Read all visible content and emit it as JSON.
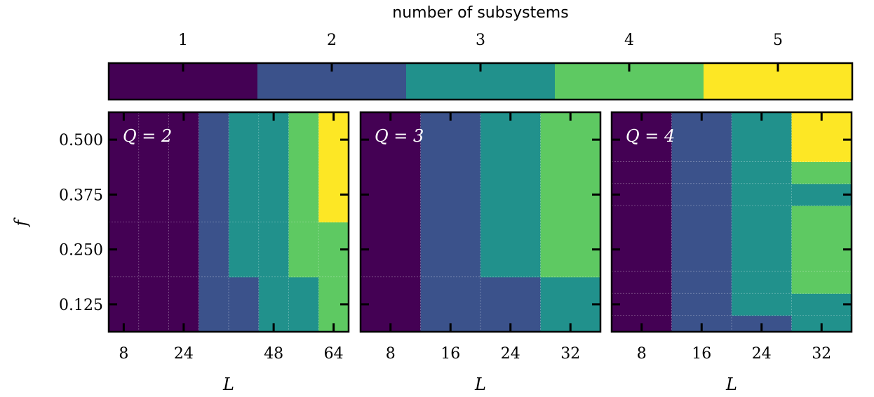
{
  "chart_data": {
    "type": "heatmap",
    "colorbar": {
      "label": "number of subsystems",
      "ticks": [
        "1",
        "2",
        "3",
        "4",
        "5"
      ],
      "values": [
        1,
        2,
        3,
        4,
        5
      ],
      "colors": [
        "#440154",
        "#3b528b",
        "#21918c",
        "#5ec962",
        "#fde725"
      ]
    },
    "y_label": "f",
    "y_ticks": [
      0.125,
      0.25,
      0.375,
      0.5
    ],
    "y_tick_labels": [
      "0.125",
      "0.250",
      "0.375",
      "0.500"
    ],
    "panels": [
      {
        "label": "Q = 2",
        "x_label": "L",
        "x_tick_labels": [
          "8",
          "24",
          "48",
          "64"
        ],
        "x_ticks": [
          8,
          24,
          48,
          64
        ],
        "x_edges": [
          4,
          12,
          20,
          28,
          36,
          44,
          52,
          60,
          68
        ],
        "y_edges": [
          0.0625,
          0.1875,
          0.3125,
          0.5625
        ],
        "cells": [
          [
            1,
            1,
            1,
            2,
            2,
            3,
            3,
            4
          ],
          [
            1,
            1,
            1,
            2,
            3,
            3,
            4,
            4
          ],
          [
            1,
            1,
            1,
            2,
            3,
            3,
            4,
            5
          ]
        ]
      },
      {
        "label": "Q = 3",
        "x_label": "L",
        "x_tick_labels": [
          "8",
          "16",
          "24",
          "32"
        ],
        "x_ticks": [
          8,
          16,
          24,
          32
        ],
        "x_edges": [
          4,
          12,
          20,
          28,
          36
        ],
        "y_edges": [
          0.0625,
          0.1875,
          0.5625
        ],
        "cells": [
          [
            1,
            2,
            2,
            3
          ],
          [
            1,
            2,
            3,
            4
          ]
        ]
      },
      {
        "label": "Q = 4",
        "x_label": "L",
        "x_tick_labels": [
          "8",
          "16",
          "24",
          "32"
        ],
        "x_ticks": [
          8,
          16,
          24,
          32
        ],
        "x_edges": [
          4,
          12,
          20,
          28,
          36
        ],
        "y_edges": [
          0.0625,
          0.1,
          0.15,
          0.2,
          0.35,
          0.4,
          0.45,
          0.5625
        ],
        "cells": [
          [
            1,
            2,
            2,
            3
          ],
          [
            1,
            2,
            3,
            3
          ],
          [
            1,
            2,
            3,
            4
          ],
          [
            1,
            2,
            3,
            4
          ],
          [
            1,
            2,
            3,
            3
          ],
          [
            1,
            2,
            3,
            4
          ],
          [
            1,
            2,
            3,
            5
          ]
        ]
      }
    ]
  }
}
